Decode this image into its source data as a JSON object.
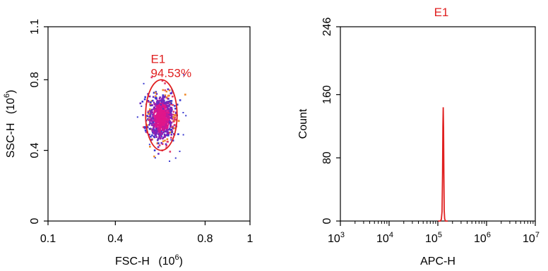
{
  "chart_data": [
    {
      "type": "scatter",
      "title": "",
      "xlabel": "FSC-H",
      "xlabel_exponent": "(10^6)",
      "ylabel": "SSC-H",
      "ylabel_exponent": "(10^6)",
      "xlim": [
        0.1,
        1.0
      ],
      "ylim": [
        0,
        1.1
      ],
      "x_ticks": [
        0.1,
        0.4,
        0.8,
        1
      ],
      "x_tick_labels": [
        "0.1",
        "0.4",
        "0.8",
        "1"
      ],
      "y_ticks": [
        0,
        0.4,
        0.8,
        1.1
      ],
      "y_tick_labels": [
        "0",
        "0.4",
        "0.8",
        "1.1"
      ],
      "gate": {
        "name": "E1",
        "percent_label": "94.53%",
        "color": "#e02020",
        "shape": "ellipse",
        "center": [
          0.605,
          0.6
        ],
        "x_radius": 0.07,
        "y_radius": 0.2
      },
      "population": {
        "center": [
          0.605,
          0.585
        ],
        "spread_x": 0.028,
        "spread_y": 0.065,
        "colors": [
          "#e0168a",
          "#c21a9a",
          "#9a1fb0",
          "#6a2bc0",
          "#e03a6a",
          "#f08a2a",
          "#3a3ad0"
        ]
      },
      "grid": false
    },
    {
      "type": "line",
      "title": "E1",
      "title_color": "#e02020",
      "xlabel": "APC-H",
      "ylabel": "Count",
      "x_scale": "log",
      "xlim": [
        1000,
        10000000
      ],
      "ylim": [
        0,
        246
      ],
      "x_tick_labels": [
        "10^3",
        "10^4",
        "10^5",
        "10^6",
        "10^7"
      ],
      "y_ticks": [
        0,
        80,
        160,
        246
      ],
      "y_tick_labels": [
        "0",
        "80",
        "160",
        "246"
      ],
      "series": [
        {
          "color": "#e02020",
          "x": [
            100000,
            112000,
            118000,
            122000,
            125000,
            127000,
            129000,
            131000,
            133000,
            135000,
            138000,
            143000,
            150000,
            160000
          ],
          "y": [
            0,
            0,
            2,
            12,
            60,
            120,
            144,
            118,
            60,
            14,
            3,
            0,
            0,
            0
          ]
        }
      ],
      "grid": false
    }
  ]
}
